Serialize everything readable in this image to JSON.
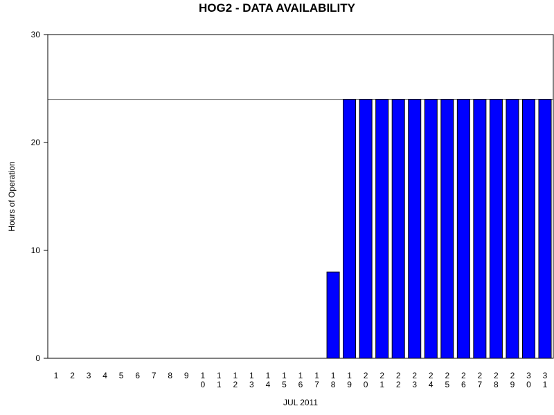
{
  "chart_data": {
    "type": "bar",
    "title": "HOG2 - DATA AVAILABILITY",
    "xlabel": "JUL 2011",
    "ylabel": "Hours of Operation",
    "ylim": [
      0,
      30
    ],
    "yticks": [
      0,
      10,
      20,
      30
    ],
    "reference_line": 24,
    "grid": false,
    "bar_color": "#0000ff",
    "categories": [
      "1",
      "2",
      "3",
      "4",
      "5",
      "6",
      "7",
      "8",
      "9",
      "10",
      "11",
      "12",
      "13",
      "14",
      "15",
      "16",
      "17",
      "18",
      "19",
      "20",
      "21",
      "22",
      "23",
      "24",
      "25",
      "26",
      "27",
      "28",
      "29",
      "30",
      "31"
    ],
    "values": [
      0,
      0,
      0,
      0,
      0,
      0,
      0,
      0,
      0,
      0,
      0,
      0,
      0,
      0,
      0,
      0,
      0,
      8,
      24,
      24,
      24,
      24,
      24,
      24,
      24,
      24,
      24,
      24,
      24,
      24,
      24
    ]
  }
}
